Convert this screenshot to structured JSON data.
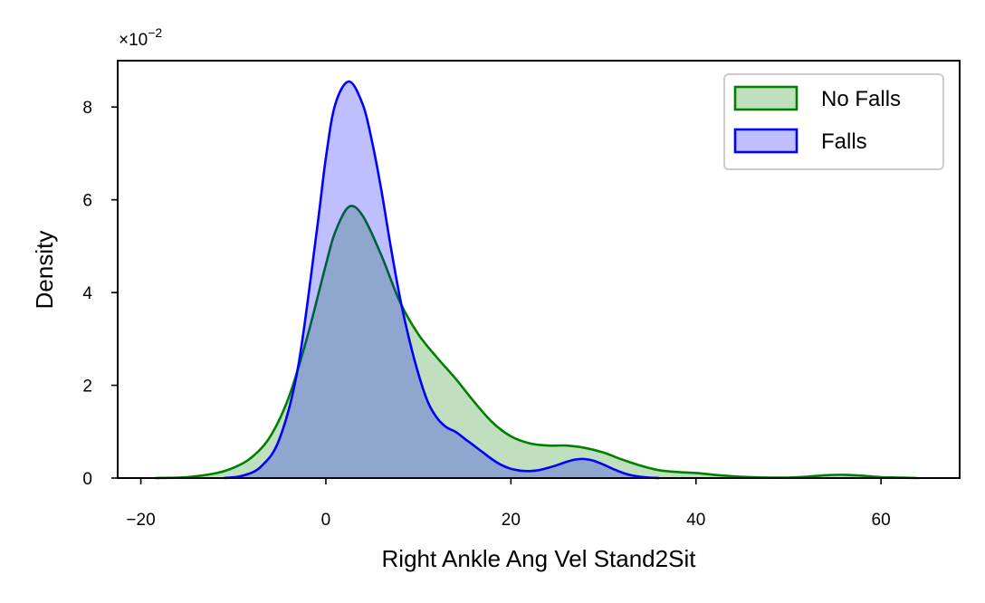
{
  "chart_data": {
    "type": "area",
    "xlabel": "Right Ankle Ang Vel Stand2Sit",
    "ylabel": "Density",
    "xlim": [
      -22.5,
      68.5
    ],
    "ylim": [
      0,
      9
    ],
    "xticks": [
      -20,
      0,
      20,
      40,
      60
    ],
    "yticks": [
      0,
      2,
      4,
      6,
      8
    ],
    "xtick_labels": [
      "−20",
      "0",
      "20",
      "40",
      "60"
    ],
    "ytick_labels": [
      "0",
      "2",
      "4",
      "6",
      "8"
    ],
    "y_multiplier_base": "×10",
    "y_multiplier_exp": "−2",
    "legend_position": "top-right",
    "grid": false,
    "series": [
      {
        "name": "No Falls",
        "line_color": "#008000",
        "fill_color": "#008000",
        "fill_opacity": 0.25,
        "x": [
          -18.5,
          -15,
          -12,
          -10,
          -8,
          -6,
          -4,
          -2,
          0,
          1,
          2.5,
          4,
          6,
          8,
          10,
          12,
          14,
          16,
          18,
          20,
          22,
          24,
          26,
          28,
          30,
          32,
          34,
          36,
          38,
          40,
          42,
          44,
          46,
          48,
          50,
          52,
          54,
          56,
          58,
          60,
          62,
          64
        ],
        "y": [
          0.0,
          0.02,
          0.1,
          0.22,
          0.45,
          0.9,
          1.75,
          3.05,
          4.6,
          5.3,
          5.85,
          5.65,
          4.8,
          3.8,
          3.1,
          2.6,
          2.15,
          1.65,
          1.2,
          0.9,
          0.75,
          0.7,
          0.7,
          0.65,
          0.55,
          0.4,
          0.27,
          0.17,
          0.13,
          0.11,
          0.07,
          0.04,
          0.02,
          0.01,
          0.01,
          0.03,
          0.06,
          0.07,
          0.05,
          0.02,
          0.01,
          0.0
        ]
      },
      {
        "name": "Falls",
        "line_color": "#0000ff",
        "fill_color": "#0000ff",
        "fill_opacity": 0.25,
        "x": [
          -11,
          -9,
          -7,
          -5,
          -3,
          -1,
          0,
          1,
          2.5,
          4,
          5,
          6,
          7,
          8,
          9,
          10,
          11,
          12,
          13,
          14,
          15,
          16,
          17,
          18,
          19,
          20,
          21,
          22,
          23,
          24,
          25,
          26,
          27,
          28,
          29,
          30,
          31,
          32,
          33,
          34,
          35,
          36
        ],
        "y": [
          0.0,
          0.05,
          0.25,
          0.85,
          2.4,
          5.3,
          6.9,
          8.05,
          8.55,
          8.05,
          7.25,
          6.2,
          5.0,
          3.9,
          3.0,
          2.25,
          1.65,
          1.3,
          1.1,
          1.0,
          0.85,
          0.7,
          0.55,
          0.4,
          0.28,
          0.2,
          0.16,
          0.15,
          0.17,
          0.22,
          0.28,
          0.35,
          0.4,
          0.41,
          0.37,
          0.29,
          0.2,
          0.12,
          0.06,
          0.03,
          0.01,
          0.0
        ]
      }
    ]
  }
}
